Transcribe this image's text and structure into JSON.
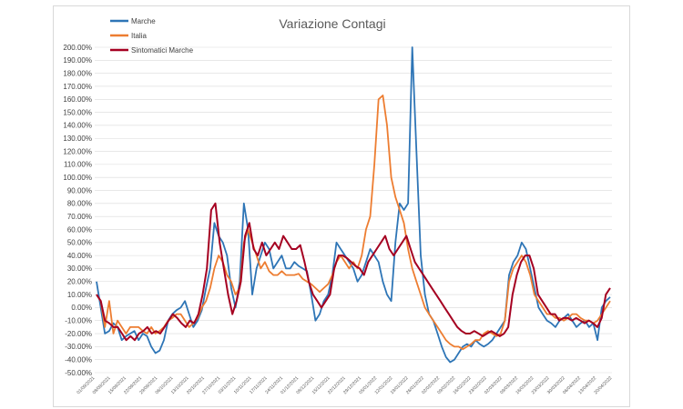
{
  "chart_data": {
    "type": "line",
    "title": "Variazione Contagi",
    "xlabel": "",
    "ylabel": "",
    "ylim": [
      -50,
      200
    ],
    "ytick_step": 10,
    "grid": true,
    "legend_placement": "top-left",
    "x_tick_labels": [
      "01/09/2021",
      "08/09/2021",
      "15/09/2021",
      "22/09/2021",
      "29/09/2021",
      "06/10/2021",
      "13/10/2021",
      "20/10/2021",
      "27/10/2021",
      "03/11/2021",
      "10/11/2021",
      "17/11/2021",
      "24/11/2021",
      "01/12/2021",
      "08/12/2021",
      "15/12/2021",
      "22/12/2021",
      "29/12/2021",
      "05/01/2022",
      "12/01/2022",
      "19/01/2022",
      "26/01/2022",
      "02/02/2022",
      "09/02/2022",
      "16/02/2022",
      "23/02/2022",
      "02/03/2022",
      "09/03/2022",
      "16/03/2022",
      "23/03/2022",
      "30/03/2022",
      "06/04/2022",
      "13/04/2022",
      "20/04/2022"
    ],
    "series": [
      {
        "name": "Marche",
        "color": "#2E75B6",
        "values": [
          20,
          0,
          -20,
          -18,
          -12,
          -15,
          -25,
          -22,
          -20,
          -18,
          -25,
          -20,
          -22,
          -30,
          -35,
          -33,
          -25,
          -10,
          -5,
          -2,
          0,
          5,
          -5,
          -15,
          -10,
          -2,
          15,
          30,
          65,
          55,
          50,
          40,
          15,
          0,
          20,
          80,
          60,
          10,
          30,
          40,
          50,
          45,
          30,
          35,
          40,
          30,
          30,
          35,
          32,
          30,
          28,
          10,
          -10,
          -5,
          5,
          10,
          25,
          50,
          45,
          40,
          35,
          30,
          20,
          25,
          35,
          45,
          40,
          35,
          20,
          10,
          5,
          50,
          80,
          75,
          80,
          200,
          120,
          40,
          10,
          -5,
          -10,
          -20,
          -30,
          -38,
          -42,
          -40,
          -35,
          -30,
          -28,
          -30,
          -25,
          -28,
          -30,
          -28,
          -25,
          -20,
          -15,
          -10,
          25,
          35,
          40,
          50,
          45,
          30,
          15,
          0,
          -5,
          -10,
          -12,
          -15,
          -10,
          -8,
          -5,
          -10,
          -15,
          -12,
          -10,
          -15,
          -12,
          -25,
          0,
          5,
          8
        ]
      },
      {
        "name": "Italia",
        "color": "#ED7D31",
        "values": [
          10,
          5,
          -15,
          5,
          -20,
          -10,
          -15,
          -20,
          -15,
          -15,
          -15,
          -18,
          -20,
          -15,
          -20,
          -18,
          -15,
          -10,
          -8,
          -5,
          -5,
          -10,
          -15,
          -12,
          -8,
          0,
          5,
          15,
          30,
          40,
          35,
          25,
          20,
          10,
          15,
          50,
          60,
          50,
          40,
          30,
          35,
          28,
          25,
          25,
          28,
          25,
          25,
          25,
          26,
          22,
          20,
          18,
          15,
          12,
          15,
          18,
          25,
          35,
          40,
          35,
          30,
          35,
          30,
          40,
          60,
          70,
          110,
          160,
          163,
          140,
          100,
          85,
          75,
          65,
          45,
          30,
          20,
          10,
          0,
          -5,
          -10,
          -15,
          -20,
          -25,
          -28,
          -30,
          -30,
          -32,
          -30,
          -28,
          -25,
          -25,
          -20,
          -18,
          -20,
          -22,
          -20,
          -10,
          20,
          30,
          35,
          40,
          35,
          25,
          10,
          5,
          0,
          -5,
          -5,
          -8,
          -8,
          -10,
          -8,
          -5,
          -5,
          -8,
          -10,
          -10,
          -12,
          -10,
          -5,
          0,
          5
        ]
      },
      {
        "name": "Sintomatici Marche",
        "color": "#A50021",
        "values": [
          10,
          5,
          -10,
          -12,
          -15,
          -15,
          -20,
          -25,
          -22,
          -25,
          -20,
          -18,
          -15,
          -20,
          -18,
          -20,
          -15,
          -10,
          -5,
          -8,
          -12,
          -15,
          -10,
          -12,
          -5,
          10,
          30,
          75,
          80,
          50,
          30,
          10,
          -5,
          5,
          20,
          55,
          65,
          45,
          40,
          50,
          40,
          45,
          50,
          45,
          55,
          50,
          45,
          45,
          48,
          35,
          20,
          10,
          5,
          0,
          5,
          10,
          30,
          40,
          40,
          38,
          35,
          32,
          30,
          25,
          35,
          40,
          45,
          50,
          55,
          45,
          40,
          45,
          50,
          55,
          45,
          35,
          30,
          25,
          20,
          15,
          10,
          5,
          0,
          -5,
          -10,
          -15,
          -18,
          -20,
          -20,
          -18,
          -20,
          -22,
          -20,
          -18,
          -20,
          -22,
          -20,
          -15,
          10,
          25,
          35,
          40,
          40,
          30,
          10,
          5,
          0,
          -5,
          -5,
          -10,
          -8,
          -8,
          -10,
          -8,
          -10,
          -12,
          -10,
          -12,
          -15,
          -8,
          10,
          15
        ]
      }
    ]
  }
}
